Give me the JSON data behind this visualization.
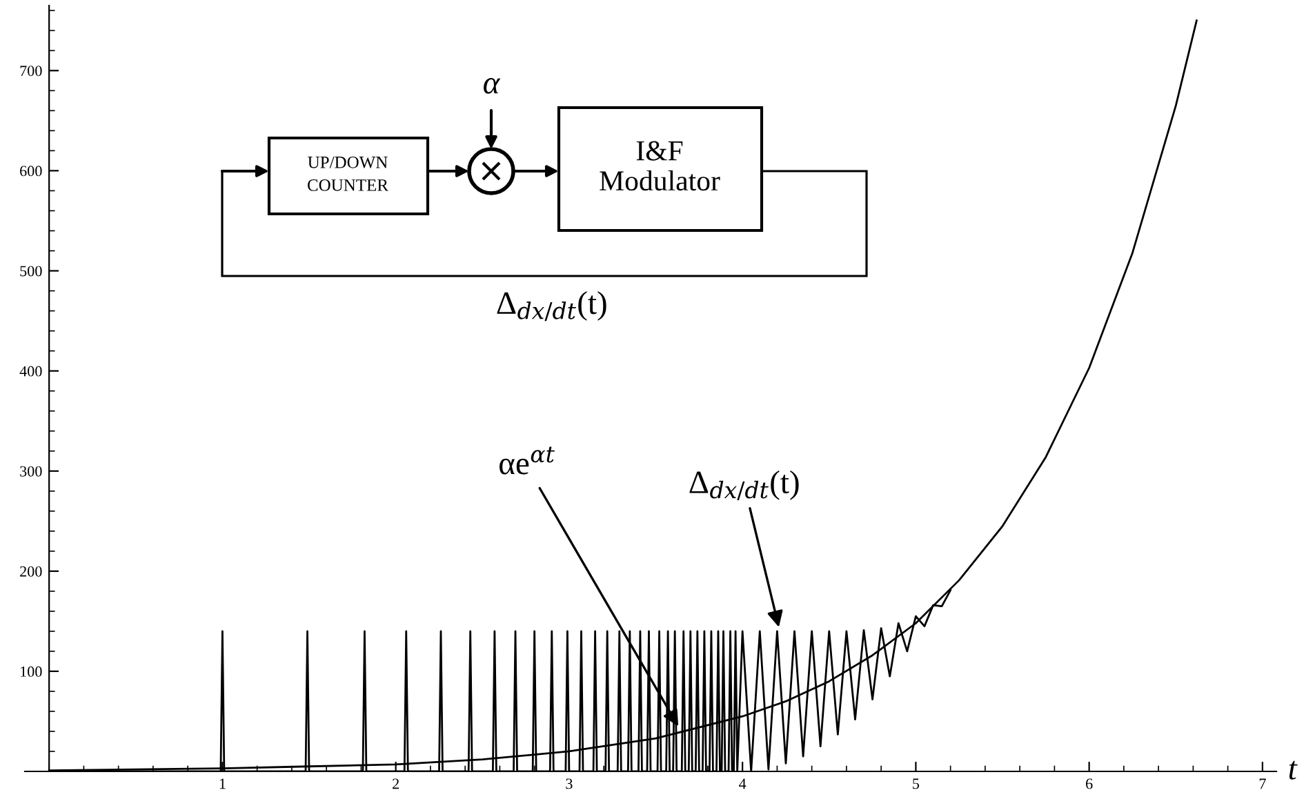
{
  "chart_data": {
    "type": "line",
    "xlabel": "t",
    "xlim": [
      -0.14,
      7.08
    ],
    "ylim": [
      0,
      765
    ],
    "xticks": [
      1,
      2,
      3,
      4,
      5,
      6,
      7
    ],
    "yticks": [
      100,
      200,
      300,
      400,
      500,
      600,
      700
    ],
    "grid": false,
    "marker": "none",
    "line_style": "solid",
    "series": [
      {
        "color": "#000000",
        "x": [
          0,
          0.5,
          1,
          1.5,
          2,
          2.5,
          3,
          3.5,
          4,
          4.25,
          4.5,
          4.75,
          5,
          5.25,
          5.5,
          5.75,
          6,
          6.25,
          6.5,
          6.62
        ],
        "values": [
          1,
          2,
          3,
          5,
          7,
          12,
          20,
          33,
          55,
          70,
          90,
          116,
          148,
          191,
          245,
          314,
          403,
          518,
          665,
          750
        ]
      },
      {
        "color": "#000000",
        "x": [
          0,
          0.99,
          1.0,
          1.01,
          1.48,
          1.49,
          1.5,
          1.81,
          1.82,
          1.83,
          2.05,
          2.06,
          2.07,
          2.25,
          2.26,
          2.27,
          2.42,
          2.43,
          2.44,
          2.56,
          2.57,
          2.58,
          2.68,
          2.69,
          2.7,
          2.79,
          2.8,
          2.81,
          2.89,
          2.9,
          2.91,
          2.98,
          2.99,
          3.0,
          3.06,
          3.07,
          3.08,
          3.14,
          3.15,
          3.16,
          3.21,
          3.22,
          3.23,
          3.28,
          3.29,
          3.3,
          3.34,
          3.35,
          3.36,
          3.4,
          3.41,
          3.42,
          3.45,
          3.46,
          3.47,
          3.51,
          3.52,
          3.53,
          3.56,
          3.57,
          3.58,
          3.6,
          3.61,
          3.62,
          3.65,
          3.66,
          3.67,
          3.69,
          3.7,
          3.71,
          3.73,
          3.74,
          3.75,
          3.77,
          3.78,
          3.79,
          3.81,
          3.82,
          3.83,
          3.85,
          3.86,
          3.87,
          3.88,
          3.89,
          3.9,
          3.92,
          3.93,
          3.94,
          3.95,
          3.96,
          3.97,
          4.0,
          4.05,
          4.1,
          4.15,
          4.2,
          4.25,
          4.3,
          4.35,
          4.4,
          4.45,
          4.5,
          4.55,
          4.6,
          4.65,
          4.7,
          4.75,
          4.8,
          4.85,
          4.9,
          4.95,
          5.0,
          5.05,
          5.1,
          5.15,
          5.2
        ],
        "values": [
          0,
          0,
          140,
          0,
          0,
          140,
          0,
          0,
          140,
          0,
          0,
          140,
          0,
          0,
          140,
          0,
          0,
          140,
          0,
          0,
          140,
          0,
          0,
          140,
          0,
          0,
          140,
          0,
          0,
          140,
          0,
          0,
          140,
          0,
          0,
          140,
          0,
          0,
          140,
          0,
          0,
          140,
          0,
          0,
          140,
          0,
          0,
          140,
          0,
          0,
          140,
          0,
          0,
          140,
          0,
          0,
          140,
          0,
          0,
          140,
          0,
          0,
          140,
          0,
          0,
          140,
          0,
          0,
          140,
          0,
          0,
          140,
          0,
          0,
          140,
          0,
          0,
          140,
          0,
          0,
          140,
          0,
          0,
          140,
          0,
          0,
          140,
          0,
          0,
          140,
          0,
          140,
          0,
          140,
          2,
          140,
          8,
          140,
          15,
          140,
          25,
          140,
          37,
          140,
          52,
          141,
          72,
          143,
          95,
          148,
          120,
          155,
          145,
          166,
          165,
          181
        ]
      }
    ],
    "annotations": [
      "α",
      "UP/DOWN COUNTER",
      "I&F Modulator",
      "Δ$_{dx/dt}$(t)",
      {
        "text": "αe$^{αt}$",
        "x": 3.63,
        "y": 45
      },
      {
        "text": "Δ$_{dx/dt}$(t)",
        "x": 4.21,
        "y": 144
      }
    ]
  }
}
